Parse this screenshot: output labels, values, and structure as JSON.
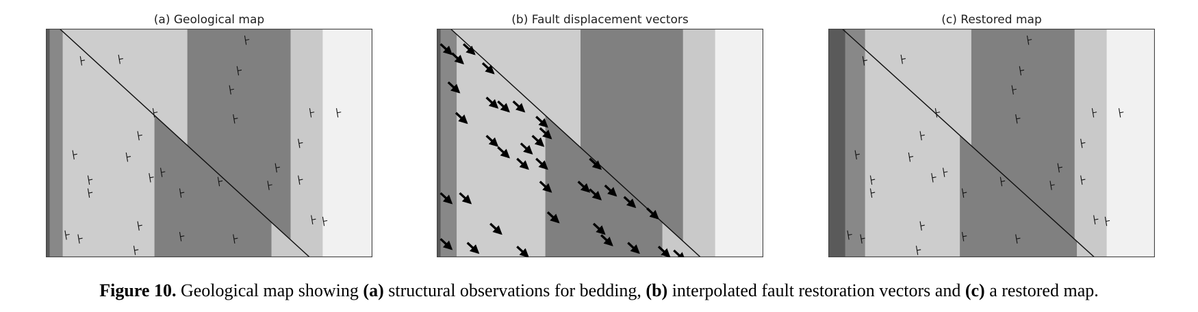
{
  "panels": [
    {
      "title": "(a) Geological map"
    },
    {
      "title": "(b) Fault displacement vectors"
    },
    {
      "title": "(c) Restored map"
    }
  ],
  "caption": {
    "label": "Figure 10.",
    "parts": [
      {
        "text": " Geological map showing ",
        "bold": false
      },
      {
        "text": "(a)",
        "bold": true
      },
      {
        "text": " structural observations for bedding, ",
        "bold": false
      },
      {
        "text": "(b)",
        "bold": true
      },
      {
        "text": " interpolated fault restoration vectors and ",
        "bold": false
      },
      {
        "text": "(c)",
        "bold": true
      },
      {
        "text": " a restored map.",
        "bold": false
      }
    ]
  }
}
